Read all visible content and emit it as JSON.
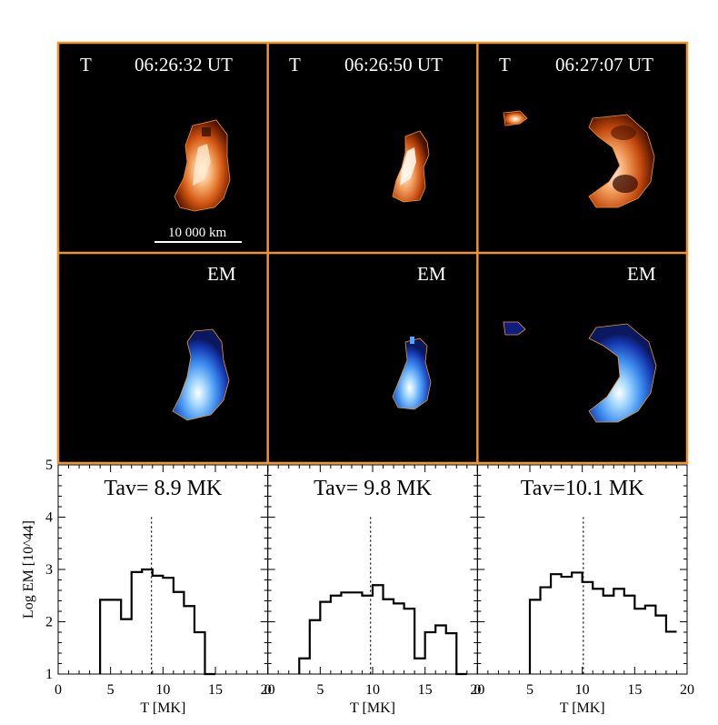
{
  "colors": {
    "frame": "#f0952a",
    "image_bg": "#000000",
    "histogram": "#000000"
  },
  "panels": [
    {
      "t_label": "T",
      "time": "06:26:32 UT",
      "em_label": "EM"
    },
    {
      "t_label": "T",
      "time": "06:26:50 UT",
      "em_label": "EM"
    },
    {
      "t_label": "T",
      "time": "06:27:07 UT",
      "em_label": "EM"
    }
  ],
  "scale_bar": {
    "label": "10 000 km"
  },
  "chart_data": {
    "type": "line",
    "step": true,
    "ylabel": "Log EM [10^44]",
    "xlabel": "T [MK]",
    "xlim": [
      0,
      20
    ],
    "ylim": [
      1,
      5
    ],
    "xticks": [
      "0",
      "5",
      "10",
      "15",
      "20"
    ],
    "yticks": [
      "1",
      "2",
      "3",
      "4",
      "5"
    ],
    "grid": false,
    "series": [
      {
        "title": "Tav= 8.9 MK",
        "tav": 8.9,
        "x": [
          4.5,
          5.5,
          6.5,
          7.5,
          8.5,
          9.5,
          10.5,
          11.5,
          12.5,
          13.5,
          14.5
        ],
        "y": [
          2.42,
          2.42,
          2.05,
          2.95,
          3.0,
          2.88,
          2.84,
          2.57,
          2.3,
          1.8,
          0.9
        ]
      },
      {
        "title": "Tav= 9.8 MK",
        "tav": 9.8,
        "x": [
          3.5,
          4.5,
          5.5,
          6.5,
          7.5,
          8.5,
          9.5,
          10.5,
          11.5,
          12.5,
          13.5,
          14.5,
          15.5,
          16.5,
          17.5,
          18.5
        ],
        "y": [
          1.3,
          2.03,
          2.38,
          2.5,
          2.56,
          2.56,
          2.5,
          2.7,
          2.43,
          2.35,
          2.25,
          1.3,
          1.8,
          1.93,
          1.78,
          0.9
        ]
      },
      {
        "title": "Tav=10.1 MK",
        "tav": 10.1,
        "x": [
          5.5,
          6.5,
          7.5,
          8.5,
          9.5,
          10.5,
          11.5,
          12.5,
          13.5,
          14.5,
          15.5,
          16.5,
          17.5,
          18.5
        ],
        "y": [
          2.42,
          2.66,
          2.91,
          2.86,
          2.94,
          2.76,
          2.63,
          2.5,
          2.63,
          2.5,
          2.25,
          2.31,
          2.12,
          1.81
        ]
      }
    ]
  }
}
